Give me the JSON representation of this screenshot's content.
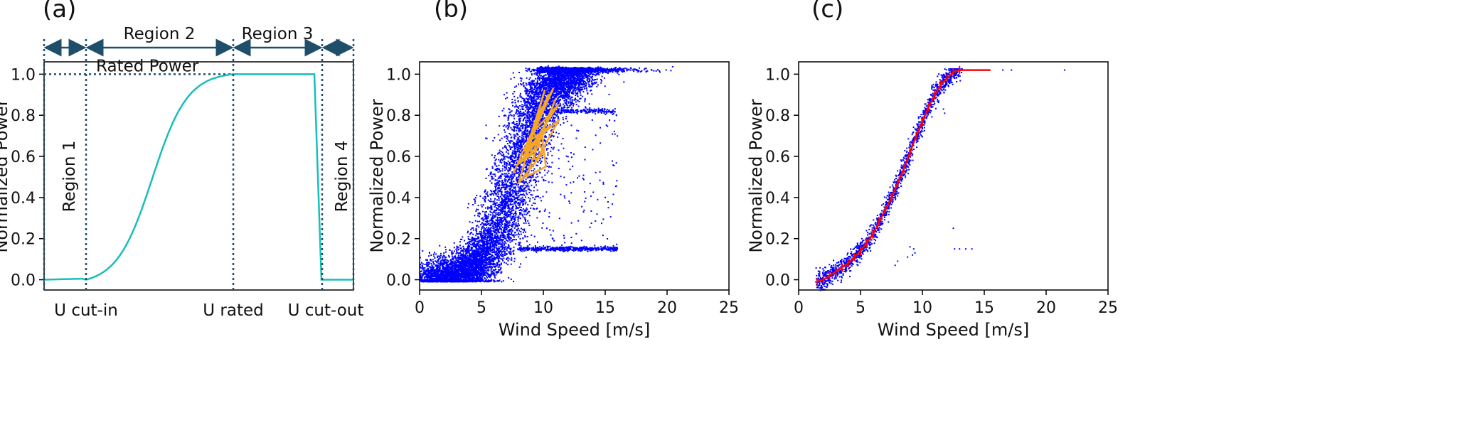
{
  "chart_data": [
    {
      "panel": "(a)",
      "type": "line",
      "ylabel": "Normalized Power",
      "ylim": [
        -0.05,
        1.06
      ],
      "yticks": [
        "0.0",
        "0.2",
        "0.4",
        "0.6",
        "0.8",
        "1.0"
      ],
      "x_markers": [
        "U cut-in",
        "U rated",
        "U cut-out"
      ],
      "regions": [
        "Region 1",
        "Region 2",
        "Region 3",
        "Region 4"
      ],
      "annotation": "Rated Power",
      "curve_color": "#17bebb",
      "series": [
        {
          "x": [
            0,
            2,
            4,
            5,
            6,
            7,
            8,
            9,
            10,
            11,
            12,
            13,
            14,
            15,
            16,
            17,
            20,
            21.6,
            22,
            22.1,
            25
          ],
          "y": [
            0,
            0,
            0.005,
            0.02,
            0.08,
            0.17,
            0.31,
            0.47,
            0.64,
            0.8,
            0.92,
            0.97,
            0.99,
            1.0,
            1.0,
            1.0,
            1.0,
            1.0,
            0.5,
            0,
            0
          ]
        }
      ]
    },
    {
      "panel": "(b)",
      "type": "scatter",
      "xlabel": "Wind Speed [m/s]",
      "ylabel": "Normalized Power",
      "xlim": [
        0,
        25
      ],
      "ylim": [
        -0.05,
        1.06
      ],
      "xticks": [
        "0",
        "5",
        "10",
        "15",
        "20",
        "25"
      ],
      "yticks": [
        "0.0",
        "0.2",
        "0.4",
        "0.6",
        "0.8",
        "1.0"
      ],
      "scatter_color": "#0000ff",
      "overlay_color": "#f5a623",
      "overlay_points": [
        [
          7.6,
          0.52
        ],
        [
          10.4,
          0.9
        ],
        [
          8.5,
          0.6
        ],
        [
          11.2,
          0.85
        ],
        [
          9.2,
          0.72
        ],
        [
          10.0,
          0.62
        ],
        [
          8.0,
          0.47
        ],
        [
          9.6,
          0.8
        ],
        [
          10.8,
          0.93
        ],
        [
          8.8,
          0.66
        ],
        [
          9.4,
          0.58
        ],
        [
          11.3,
          0.78
        ],
        [
          8.3,
          0.62
        ],
        [
          9.9,
          0.7
        ],
        [
          10.2,
          0.55
        ],
        [
          8.6,
          0.5
        ],
        [
          11.0,
          0.88
        ],
        [
          9.1,
          0.61
        ],
        [
          7.9,
          0.56
        ],
        [
          10.6,
          0.75
        ],
        [
          9.0,
          0.68
        ],
        [
          10.1,
          0.92
        ],
        [
          8.4,
          0.59
        ],
        [
          9.7,
          0.65
        ]
      ]
    },
    {
      "panel": "(c)",
      "type": "scatter",
      "xlabel": "Wind Speed [m/s]",
      "ylabel": "Normalized Power",
      "xlim": [
        0,
        25
      ],
      "ylim": [
        -0.05,
        1.06
      ],
      "xticks": [
        "0",
        "5",
        "10",
        "15",
        "20",
        "25"
      ],
      "yticks": [
        "0.0",
        "0.2",
        "0.4",
        "0.6",
        "0.8",
        "1.0"
      ],
      "scatter_color": "#0000ff",
      "fit_color": "#ff0000",
      "fit_curve": {
        "x": [
          1.5,
          2.0,
          2.5,
          3.0,
          3.5,
          4.0,
          4.5,
          5.0,
          5.5,
          6.0,
          6.5,
          7.0,
          7.5,
          8.0,
          8.5,
          9.0,
          9.5,
          10.0,
          10.5,
          11.0,
          11.5,
          12.0,
          12.5,
          13.0,
          14.0,
          15.5
        ],
        "y": [
          -0.01,
          0.0,
          0.02,
          0.04,
          0.06,
          0.08,
          0.11,
          0.14,
          0.18,
          0.22,
          0.28,
          0.34,
          0.4,
          0.47,
          0.54,
          0.62,
          0.7,
          0.77,
          0.84,
          0.9,
          0.95,
          0.98,
          1.01,
          1.02,
          1.02,
          1.02
        ]
      },
      "outliers": [
        [
          9.2,
          0.12
        ],
        [
          9.3,
          0.15
        ],
        [
          9.4,
          0.13
        ],
        [
          9.0,
          0.16
        ],
        [
          8.8,
          0.11
        ],
        [
          12.5,
          0.25
        ],
        [
          11.8,
          0.81
        ],
        [
          11.7,
          0.83
        ],
        [
          12.6,
          0.15
        ],
        [
          13.0,
          0.15
        ],
        [
          13.5,
          0.15
        ],
        [
          14.0,
          0.15
        ],
        [
          17.2,
          1.02
        ],
        [
          21.5,
          1.02
        ],
        [
          16.5,
          1.02
        ],
        [
          7.8,
          0.07
        ],
        [
          8.0,
          0.09
        ]
      ]
    }
  ]
}
